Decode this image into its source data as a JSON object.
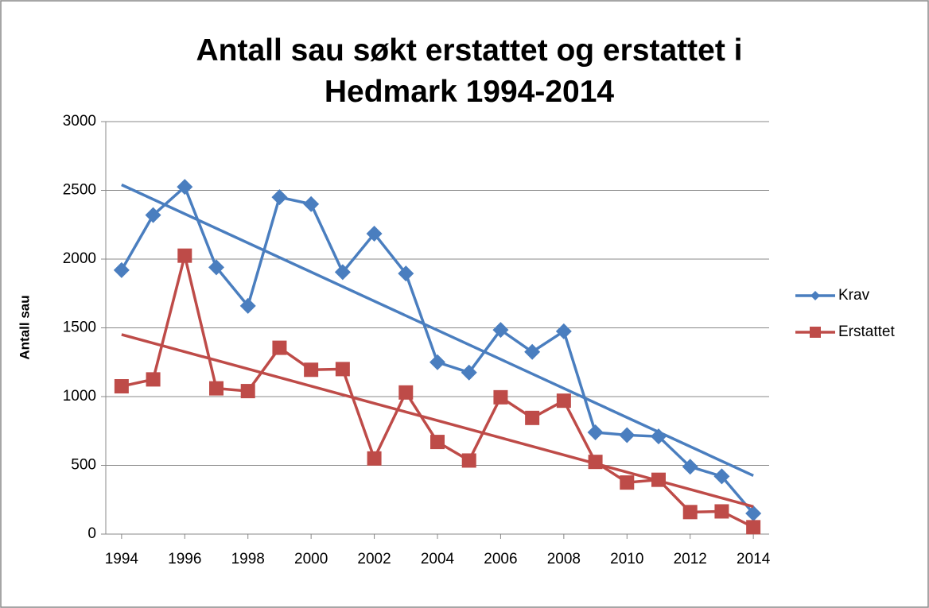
{
  "chart_data": {
    "type": "line",
    "title": "Antall sau søkt erstattet og erstattet i Hedmark 1994-2014",
    "y_label": "Antall sau",
    "x": [
      1994,
      1995,
      1996,
      1997,
      1998,
      1999,
      2000,
      2001,
      2002,
      2003,
      2004,
      2005,
      2006,
      2007,
      2008,
      2009,
      2010,
      2011,
      2012,
      2013,
      2014
    ],
    "xlim": [
      1993.5,
      2014.5
    ],
    "xticks": [
      1994,
      1996,
      1998,
      2000,
      2002,
      2004,
      2006,
      2008,
      2010,
      2012,
      2014
    ],
    "ylim": [
      0,
      3000
    ],
    "yticks": [
      0,
      500,
      1000,
      1500,
      2000,
      2500,
      3000
    ],
    "grid": true,
    "legend": "right",
    "trendline": true,
    "series": [
      {
        "name": "Krav",
        "color": "#4a7ebf",
        "marker": "diamond",
        "values": [
          1920,
          2320,
          2525,
          1940,
          1660,
          2450,
          2400,
          1905,
          2185,
          1895,
          1250,
          1175,
          1485,
          1325,
          1475,
          740,
          720,
          710,
          490,
          420,
          150
        ]
      },
      {
        "name": "Erstattet",
        "color": "#be4b48",
        "marker": "square",
        "values": [
          1075,
          1125,
          2025,
          1060,
          1040,
          1355,
          1195,
          1200,
          550,
          1030,
          670,
          535,
          995,
          845,
          970,
          525,
          375,
          395,
          160,
          165,
          50
        ]
      }
    ]
  }
}
